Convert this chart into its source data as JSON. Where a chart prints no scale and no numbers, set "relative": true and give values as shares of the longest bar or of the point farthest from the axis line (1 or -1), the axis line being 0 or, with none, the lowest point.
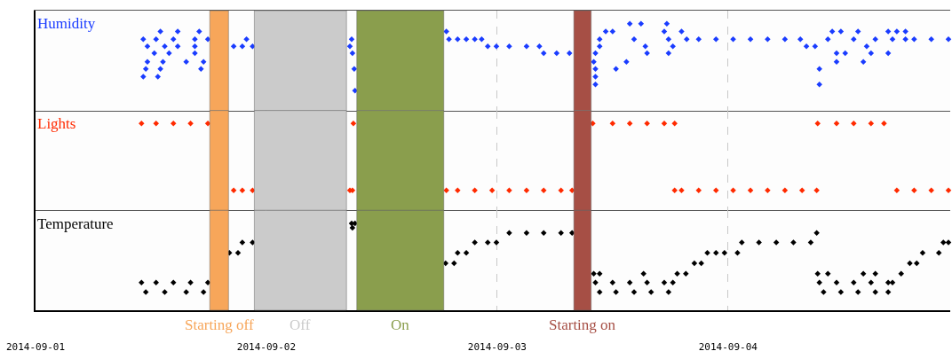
{
  "chart_data": [
    {
      "type": "scatter",
      "relative": true,
      "marker": "diamond",
      "grid": "x",
      "tick_labels": false,
      "xlim": [
        "2014-09-01",
        "2014-09-04T23:06"
      ],
      "xticks": [
        "2014-09-01",
        "2014-09-02",
        "2014-09-03",
        "2014-09-04"
      ],
      "series": [
        {
          "name": "Humidity",
          "color": "#1a3cff",
          "x": [
            "2014-09-01T11:12",
            "2014-09-01T11:28",
            "2014-09-01T11:38",
            "2014-09-01T11:38",
            "2014-09-01T11:12",
            "2014-09-01T12:21",
            "2014-09-01T12:32",
            "2014-09-01T12:43",
            "2014-09-01T12:59",
            "2014-09-01T12:59",
            "2014-09-01T13:15",
            "2014-09-01T13:26",
            "2014-09-01T13:53",
            "2014-09-01T14:20",
            "2014-09-01T14:47",
            "2014-09-01T14:47",
            "2014-09-01T15:40",
            "2014-09-01T16:34",
            "2014-09-01T16:34",
            "2014-09-01T16:34",
            "2014-09-01T17:01",
            "2014-09-01T17:12",
            "2014-09-01T17:28",
            "2014-09-01T17:55",
            "2014-09-01T20:36",
            "2014-09-01T21:30",
            "2014-09-01T21:56",
            "2014-09-01T22:34",
            "2014-09-02T08:41",
            "2014-09-02T08:52",
            "2014-09-02T08:57",
            "2014-09-02T09:08",
            "2014-09-02T09:13",
            "2014-09-02T18:43",
            "2014-09-02T18:59",
            "2014-09-02T19:53",
            "2014-09-02T20:47",
            "2014-09-02T21:40",
            "2014-09-02T22:23",
            "2014-09-02T23:01",
            "2014-09-02T23:55",
            "2014-09-03T01:15",
            "2014-09-03T03:03",
            "2014-09-03T04:23",
            "2014-09-03T04:50",
            "2014-09-03T06:11",
            "2014-09-03T07:31",
            "2014-09-03T10:02",
            "2014-09-03T10:13",
            "2014-09-03T10:13",
            "2014-09-03T10:13",
            "2014-09-03T10:13",
            "2014-09-03T10:39",
            "2014-09-03T10:39",
            "2014-09-03T11:17",
            "2014-09-03T12:00",
            "2014-09-03T12:21",
            "2014-09-03T13:26",
            "2014-09-03T13:47",
            "2014-09-03T14:14",
            "2014-09-03T14:57",
            "2014-09-03T15:24",
            "2014-09-03T15:35",
            "2014-09-03T17:22",
            "2014-09-03T17:38",
            "2014-09-03T17:49",
            "2014-09-03T17:49",
            "2014-09-03T18:16",
            "2014-09-03T19:10",
            "2014-09-03T19:42",
            "2014-09-03T20:57",
            "2014-09-03T22:45",
            "2014-09-04T00:32",
            "2014-09-04T02:20",
            "2014-09-04T04:07",
            "2014-09-04T05:55",
            "2014-09-04T07:31",
            "2014-09-04T08:09",
            "2014-09-04T09:03",
            "2014-09-04T09:30",
            "2014-09-04T09:30",
            "2014-09-04T10:23",
            "2014-09-04T10:50",
            "2014-09-04T11:17",
            "2014-09-04T11:17",
            "2014-09-04T11:44",
            "2014-09-04T12:11",
            "2014-09-04T13:04",
            "2014-09-04T13:31",
            "2014-09-04T14:04",
            "2014-09-04T14:25",
            "2014-09-04T14:52",
            "2014-09-04T15:19",
            "2014-09-04T16:39",
            "2014-09-04T16:39",
            "2014-09-04T17:06",
            "2014-09-04T17:33",
            "2014-09-04T18:27",
            "2014-09-04T18:27",
            "2014-09-04T19:21",
            "2014-09-04T21:08",
            "2014-09-04T22:55"
          ],
          "values": [
            0.39,
            0.48,
            0.74,
            0.56,
            0.82,
            0.66,
            0.82,
            0.39,
            0.91,
            0.48,
            0.56,
            0.74,
            0.66,
            0.82,
            0.91,
            0.74,
            0.56,
            0.82,
            0.74,
            0.66,
            0.91,
            0.48,
            0.56,
            0.82,
            0.74,
            0.74,
            0.82,
            0.74,
            0.74,
            0.82,
            0.66,
            0.48,
            0.23,
            0.91,
            0.82,
            0.82,
            0.82,
            0.82,
            0.82,
            0.74,
            0.74,
            0.74,
            0.74,
            0.74,
            0.66,
            0.66,
            0.66,
            0.56,
            0.3,
            0.39,
            0.48,
            0.66,
            0.74,
            0.82,
            0.91,
            0.91,
            0.48,
            0.56,
            1.0,
            0.82,
            1.0,
            0.74,
            0.66,
            0.91,
            1.0,
            0.82,
            0.66,
            0.74,
            0.91,
            0.82,
            0.82,
            0.82,
            0.82,
            0.82,
            0.82,
            0.82,
            0.82,
            0.74,
            0.74,
            0.48,
            0.3,
            0.82,
            0.91,
            0.66,
            0.56,
            0.91,
            0.66,
            0.82,
            0.91,
            0.56,
            0.74,
            0.66,
            0.82,
            0.91,
            0.66,
            0.82,
            0.91,
            0.91,
            0.82,
            0.82,
            0.82,
            0.82
          ]
        }
      ],
      "bands": [
        {
          "axis": "x",
          "from": "2014-09-01T18:07",
          "to": "2014-09-01T20:04",
          "color": "#f7a65a"
        },
        {
          "axis": "x",
          "from": "2014-09-01T22:45",
          "to": "2014-09-02T08:20",
          "color": "#cbcbcb"
        },
        {
          "axis": "x",
          "from": "2014-09-02T09:24",
          "to": "2014-09-02T18:27",
          "color": "#8a9e4d"
        },
        {
          "axis": "x",
          "from": "2014-09-03T07:58",
          "to": "2014-09-03T09:46",
          "color": "#a64f45"
        }
      ]
    },
    {
      "type": "scatter",
      "relative": true,
      "marker": "diamond",
      "grid": "x",
      "tick_labels": false,
      "xlim": [
        "2014-09-01",
        "2014-09-04T23:06"
      ],
      "xticks": [
        "2014-09-01",
        "2014-09-02",
        "2014-09-03",
        "2014-09-04"
      ],
      "series": [
        {
          "name": "Lights",
          "color": "#ff2a00",
          "x": [
            "2014-09-01T11:01",
            "2014-09-01T12:32",
            "2014-09-01T14:20",
            "2014-09-01T16:07",
            "2014-09-01T17:55",
            "2014-09-01T20:36",
            "2014-09-01T21:30",
            "2014-09-01T22:34",
            "2014-09-02T08:41",
            "2014-09-02T08:57",
            "2014-09-02T09:03",
            "2014-09-02T18:43",
            "2014-09-02T19:53",
            "2014-09-02T21:40",
            "2014-09-02T23:28",
            "2014-09-03T01:15",
            "2014-09-03T03:03",
            "2014-09-03T04:50",
            "2014-09-03T06:38",
            "2014-09-03T07:47",
            "2014-09-03T09:56",
            "2014-09-03T12:00",
            "2014-09-03T13:47",
            "2014-09-03T15:35",
            "2014-09-03T17:22",
            "2014-09-03T18:27",
            "2014-09-03T18:27",
            "2014-09-03T19:10",
            "2014-09-03T20:57",
            "2014-09-03T22:45",
            "2014-09-04T00:32",
            "2014-09-04T02:20",
            "2014-09-04T04:07",
            "2014-09-04T05:55",
            "2014-09-04T07:42",
            "2014-09-04T09:13",
            "2014-09-04T09:19",
            "2014-09-04T11:17",
            "2014-09-04T13:04",
            "2014-09-04T14:52",
            "2014-09-04T16:13",
            "2014-09-04T17:33",
            "2014-09-04T19:21",
            "2014-09-04T21:08",
            "2014-09-04T22:55"
          ],
          "values": [
            1,
            1,
            1,
            1,
            1,
            0.23,
            0.23,
            0.23,
            0.23,
            0.23,
            1,
            0.23,
            0.23,
            0.23,
            0.23,
            0.23,
            0.23,
            0.23,
            0.23,
            0.23,
            1,
            1,
            1,
            1,
            1,
            1,
            0.23,
            0.23,
            0.23,
            0.23,
            0.23,
            0.23,
            0.23,
            0.23,
            0.23,
            0.23,
            1,
            1,
            1,
            1,
            1,
            0.23,
            0.23,
            0.23,
            0.23
          ]
        }
      ],
      "bands": [
        {
          "axis": "x",
          "from": "2014-09-01T18:07",
          "to": "2014-09-01T20:04",
          "color": "#f7a65a"
        },
        {
          "axis": "x",
          "from": "2014-09-01T22:45",
          "to": "2014-09-02T08:20",
          "color": "#cbcbcb"
        },
        {
          "axis": "x",
          "from": "2014-09-02T09:24",
          "to": "2014-09-02T18:27",
          "color": "#8a9e4d"
        },
        {
          "axis": "x",
          "from": "2014-09-03T07:58",
          "to": "2014-09-03T09:46",
          "color": "#a64f45"
        }
      ]
    },
    {
      "type": "scatter",
      "relative": true,
      "marker": "diamond",
      "grid": "x",
      "tick_labels": "x",
      "xlim": [
        "2014-09-01",
        "2014-09-04T23:06"
      ],
      "xticks": [
        "2014-09-01",
        "2014-09-02",
        "2014-09-03",
        "2014-09-04"
      ],
      "series": [
        {
          "name": "Temperature",
          "color": "#000000",
          "x": [
            "2014-09-01T11:01",
            "2014-09-01T12:32",
            "2014-09-01T14:20",
            "2014-09-01T16:07",
            "2014-09-01T17:55",
            "2014-09-01T11:28",
            "2014-09-01T13:26",
            "2014-09-01T15:40",
            "2014-09-01T17:28",
            "2014-09-01T20:09",
            "2014-09-01T21:03",
            "2014-09-01T21:30",
            "2014-09-01T22:34",
            "2014-09-02T08:52",
            "2014-09-02T09:13",
            "2014-09-02T08:57",
            "2014-09-02T18:38",
            "2014-09-02T19:31",
            "2014-09-02T19:53",
            "2014-09-02T20:47",
            "2014-09-02T21:40",
            "2014-09-02T23:01",
            "2014-09-02T23:55",
            "2014-09-03T01:15",
            "2014-09-03T03:03",
            "2014-09-03T04:50",
            "2014-09-03T06:38",
            "2014-09-03T07:47",
            "2014-09-03T10:02",
            "2014-09-03T10:39",
            "2014-09-03T15:13",
            "2014-09-03T10:13",
            "2014-09-03T12:00",
            "2014-09-03T13:47",
            "2014-09-03T15:35",
            "2014-09-03T17:22",
            "2014-09-03T18:16",
            "2014-09-03T10:39",
            "2014-09-03T12:21",
            "2014-09-03T14:14",
            "2014-09-03T16:00",
            "2014-09-03T17:49",
            "2014-09-03T18:43",
            "2014-09-03T19:37",
            "2014-09-03T20:30",
            "2014-09-03T21:13",
            "2014-09-03T21:51",
            "2014-09-03T22:45",
            "2014-09-03T23:38",
            "2014-09-04T00:59",
            "2014-09-04T01:26",
            "2014-09-04T03:13",
            "2014-09-04T05:01",
            "2014-09-04T06:48",
            "2014-09-04T08:36",
            "2014-09-04T09:13",
            "2014-09-04T09:19",
            "2014-09-04T10:23",
            "2014-09-04T14:04",
            "2014-09-04T15:19",
            "2014-09-04T09:30",
            "2014-09-04T11:17",
            "2014-09-04T13:04",
            "2014-09-04T14:52",
            "2014-09-04T16:39",
            "2014-09-04T17:06",
            "2014-09-04T09:56",
            "2014-09-04T11:44",
            "2014-09-04T13:31",
            "2014-09-04T15:19",
            "2014-09-04T16:39",
            "2014-09-04T18:00",
            "2014-09-04T18:54",
            "2014-09-04T19:37",
            "2014-09-04T20:14",
            "2014-09-04T21:55",
            "2014-09-04T22:23",
            "2014-09-04T22:55"
          ],
          "values": [
            0.32,
            0.32,
            0.32,
            0.32,
            0.32,
            0.21,
            0.21,
            0.21,
            0.21,
            0.66,
            0.66,
            0.78,
            0.78,
            1.0,
            1.0,
            0.95,
            0.54,
            0.54,
            0.66,
            0.66,
            0.78,
            0.78,
            0.78,
            0.89,
            0.89,
            0.89,
            0.89,
            0.89,
            0.42,
            0.42,
            0.42,
            0.32,
            0.32,
            0.32,
            0.32,
            0.32,
            0.32,
            0.21,
            0.21,
            0.21,
            0.21,
            0.21,
            0.42,
            0.42,
            0.54,
            0.54,
            0.66,
            0.66,
            0.66,
            0.66,
            0.78,
            0.78,
            0.78,
            0.78,
            0.78,
            0.89,
            0.42,
            0.42,
            0.42,
            0.42,
            0.32,
            0.32,
            0.32,
            0.32,
            0.32,
            0.32,
            0.21,
            0.21,
            0.21,
            0.21,
            0.21,
            0.42,
            0.54,
            0.54,
            0.66,
            0.66,
            0.78,
            0.78
          ]
        }
      ],
      "bands": [
        {
          "axis": "x",
          "from": "2014-09-01T18:07",
          "to": "2014-09-01T20:04",
          "color": "#f7a65a",
          "label": "Starting off"
        },
        {
          "axis": "x",
          "from": "2014-09-01T22:45",
          "to": "2014-09-02T08:20",
          "color": "#cbcbcb",
          "label": "Off"
        },
        {
          "axis": "x",
          "from": "2014-09-02T09:24",
          "to": "2014-09-02T18:27",
          "color": "#8a9e4d",
          "label": "On"
        },
        {
          "axis": "x",
          "from": "2014-09-03T07:58",
          "to": "2014-09-03T09:46",
          "color": "#a64f45",
          "label": "Starting on"
        }
      ]
    }
  ]
}
